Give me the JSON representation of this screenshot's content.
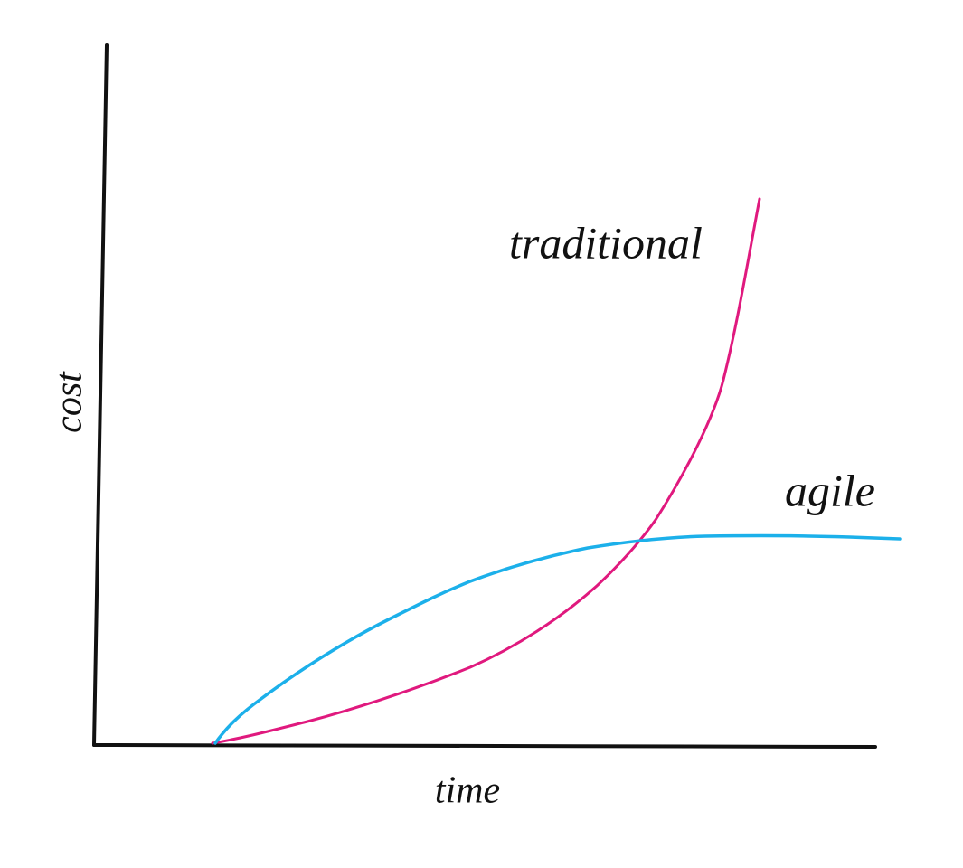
{
  "axes": {
    "y_label": "cost",
    "x_label": "time"
  },
  "curves": [
    {
      "label": "traditional"
    },
    {
      "label": "agile"
    }
  ]
}
